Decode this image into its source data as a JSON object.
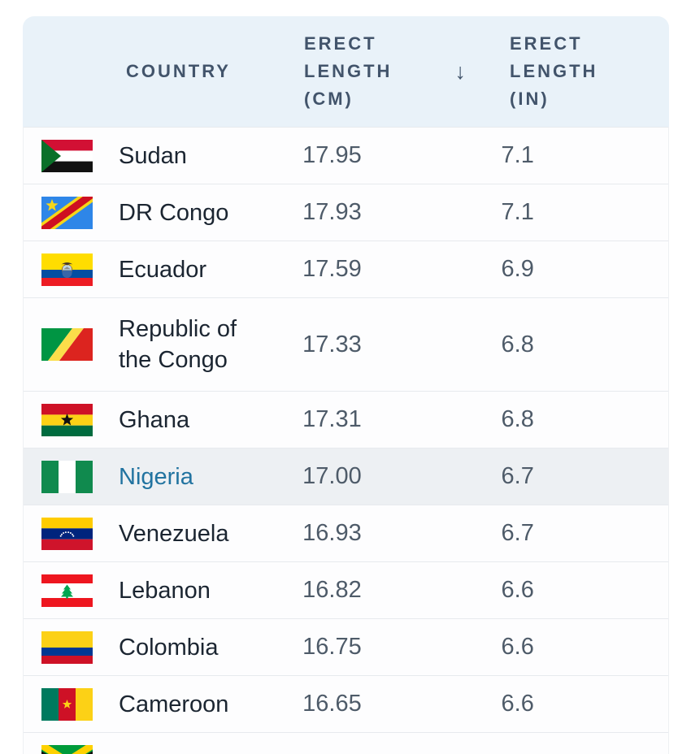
{
  "ui": {
    "colors": {
      "header_bg": "#e9f2f9",
      "header_text": "#42546b",
      "row_bg": "#fdfdfe",
      "row_border": "#e7eaee",
      "highlight_row_bg": "#edf0f3",
      "country_text": "#1b2531",
      "value_text": "#4e5b69",
      "link_text": "#2173a0"
    }
  },
  "table": {
    "headers": {
      "country": "COUNTRY",
      "cm": "ERECT LENGTH (CM)",
      "in": "ERECT LENGTH (IN)"
    },
    "sort": {
      "column": "cm",
      "direction": "descending",
      "icon": "↓"
    },
    "rows": [
      {
        "country": "Sudan",
        "flag": "sudan",
        "cm": "17.95",
        "in": "7.1"
      },
      {
        "country": "DR Congo",
        "flag": "dr-congo",
        "cm": "17.93",
        "in": "7.1"
      },
      {
        "country": "Ecuador",
        "flag": "ecuador",
        "cm": "17.59",
        "in": "6.9"
      },
      {
        "country": "Republic of the Congo",
        "flag": "republic-of-the-congo",
        "cm": "17.33",
        "in": "6.8"
      },
      {
        "country": "Ghana",
        "flag": "ghana",
        "cm": "17.31",
        "in": "6.8"
      },
      {
        "country": "Nigeria",
        "flag": "nigeria",
        "cm": "17.00",
        "in": "6.7",
        "highlighted": true,
        "link": true
      },
      {
        "country": "Venezuela",
        "flag": "venezuela",
        "cm": "16.93",
        "in": "6.7"
      },
      {
        "country": "Lebanon",
        "flag": "lebanon",
        "cm": "16.82",
        "in": "6.6"
      },
      {
        "country": "Colombia",
        "flag": "colombia",
        "cm": "16.75",
        "in": "6.6"
      },
      {
        "country": "Cameroon",
        "flag": "cameroon",
        "cm": "16.65",
        "in": "6.6"
      },
      {
        "country": "",
        "flag": "jamaica",
        "cm": "",
        "in": "",
        "partial": true
      }
    ]
  }
}
